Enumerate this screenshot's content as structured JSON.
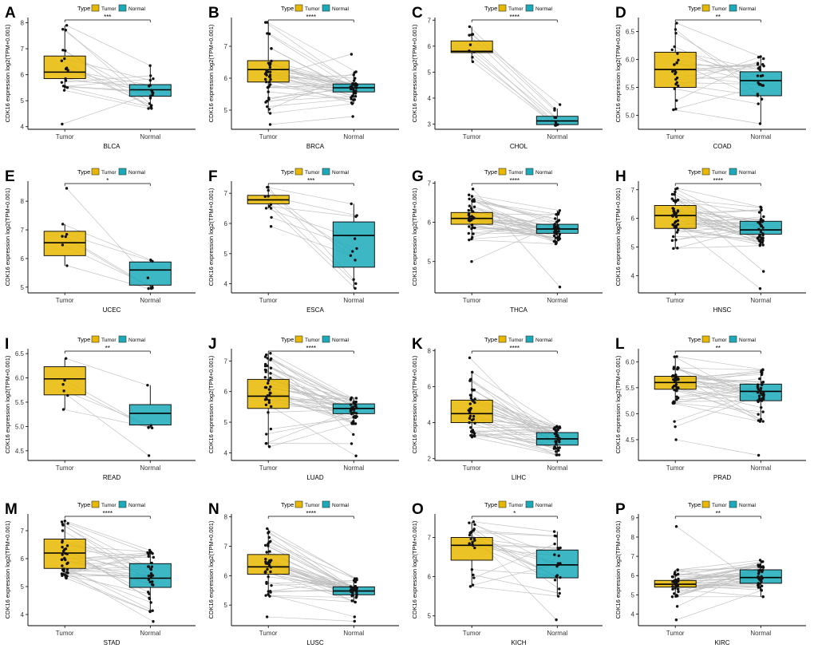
{
  "figure": {
    "ylabel": "CDK16 expression log2(TPM+0.001)",
    "legend_title": "Type",
    "groups": [
      "Tumor",
      "Normal"
    ],
    "colors": {
      "Tumor": "#E7B800",
      "Normal": "#1AAAB8",
      "line": "#bdbdbd",
      "point": "#111111"
    }
  },
  "chart_data": [
    {
      "panel": "A",
      "type": "box",
      "title": "BLCA",
      "xlabel": "BLCA",
      "categories": [
        "Tumor",
        "Normal"
      ],
      "significance": "***",
      "ylim": [
        3.9,
        8.2
      ],
      "yticks": [
        4,
        5,
        6,
        7,
        8
      ],
      "ytick_labels": [
        "4",
        "5",
        "6",
        "7",
        "8"
      ],
      "tumor": {
        "q1": 5.85,
        "median": 6.1,
        "q3": 6.72,
        "whisker_low": 5.4,
        "whisker_high": 7.9,
        "outliers": [
          4.1
        ]
      },
      "normal": {
        "q1": 5.17,
        "median": 5.42,
        "q3": 5.62,
        "whisker_low": 4.7,
        "whisker_high": 6.35,
        "outliers": []
      },
      "n_points": 19
    },
    {
      "panel": "B",
      "type": "box",
      "title": "BRCA",
      "xlabel": "BRCA",
      "categories": [
        "Tumor",
        "Normal"
      ],
      "significance": "****",
      "ylim": [
        4.4,
        7.9
      ],
      "yticks": [
        5,
        6,
        7
      ],
      "ytick_labels": [
        "5",
        "6",
        "7"
      ],
      "tumor": {
        "q1": 5.88,
        "median": 6.27,
        "q3": 6.55,
        "whisker_low": 4.9,
        "whisker_high": 7.75,
        "outliers": [
          4.55
        ]
      },
      "normal": {
        "q1": 5.57,
        "median": 5.7,
        "q3": 5.82,
        "whisker_low": 5.2,
        "whisker_high": 6.2,
        "outliers": [
          6.75,
          4.8
        ]
      },
      "n_points": 40
    },
    {
      "panel": "C",
      "type": "box",
      "title": "CHOL",
      "xlabel": "CHOL",
      "categories": [
        "Tumor",
        "Normal"
      ],
      "significance": "****",
      "ylim": [
        2.8,
        7.1
      ],
      "yticks": [
        3,
        4,
        5,
        6,
        7
      ],
      "ytick_labels": [
        "3",
        "4",
        "5",
        "6",
        "7"
      ],
      "tumor": {
        "q1": 5.75,
        "median": 5.8,
        "q3": 6.2,
        "whisker_low": 5.4,
        "whisker_high": 6.75,
        "outliers": []
      },
      "normal": {
        "q1": 2.98,
        "median": 3.12,
        "q3": 3.3,
        "whisker_low": 2.95,
        "whisker_high": 3.6,
        "outliers": [
          3.75
        ]
      },
      "n_points": 9
    },
    {
      "panel": "D",
      "type": "box",
      "title": "COAD",
      "xlabel": "COAD",
      "categories": [
        "Tumor",
        "Normal"
      ],
      "significance": "**",
      "ylim": [
        4.75,
        6.75
      ],
      "yticks": [
        5.0,
        5.5,
        6.0,
        6.5
      ],
      "ytick_labels": [
        "5.0",
        "5.5",
        "6.0",
        "6.5"
      ],
      "tumor": {
        "q1": 5.5,
        "median": 5.82,
        "q3": 6.13,
        "whisker_low": 5.1,
        "whisker_high": 6.65,
        "outliers": []
      },
      "normal": {
        "q1": 5.35,
        "median": 5.62,
        "q3": 5.78,
        "whisker_low": 4.85,
        "whisker_high": 6.05,
        "outliers": []
      },
      "n_points": 24
    },
    {
      "panel": "E",
      "type": "box",
      "title": "UCEC",
      "xlabel": "UCEC",
      "categories": [
        "Tumor",
        "Normal"
      ],
      "significance": "*",
      "ylim": [
        4.8,
        8.7
      ],
      "yticks": [
        5,
        6,
        7,
        8
      ],
      "ytick_labels": [
        "5",
        "6",
        "7",
        "8"
      ],
      "tumor": {
        "q1": 6.1,
        "median": 6.55,
        "q3": 6.95,
        "whisker_low": 5.75,
        "whisker_high": 7.2,
        "outliers": [
          8.45
        ]
      },
      "normal": {
        "q1": 5.07,
        "median": 5.6,
        "q3": 5.88,
        "whisker_low": 4.95,
        "whisker_high": 5.95,
        "outliers": []
      },
      "n_points": 7
    },
    {
      "panel": "F",
      "type": "box",
      "title": "ESCA",
      "xlabel": "ESCA",
      "categories": [
        "Tumor",
        "Normal"
      ],
      "significance": "***",
      "ylim": [
        3.7,
        7.4
      ],
      "yticks": [
        4,
        5,
        6,
        7
      ],
      "ytick_labels": [
        "4",
        "5",
        "6",
        "7"
      ],
      "tumor": {
        "q1": 6.65,
        "median": 6.78,
        "q3": 6.93,
        "whisker_low": 6.5,
        "whisker_high": 7.2,
        "outliers": [
          6.2,
          5.9
        ]
      },
      "normal": {
        "q1": 4.55,
        "median": 5.6,
        "q3": 6.05,
        "whisker_low": 3.85,
        "whisker_high": 6.65,
        "outliers": []
      },
      "n_points": 11
    },
    {
      "panel": "G",
      "type": "box",
      "title": "THCA",
      "xlabel": "THCA",
      "categories": [
        "Tumor",
        "Normal"
      ],
      "significance": "****",
      "ylim": [
        4.2,
        7.05
      ],
      "yticks": [
        5,
        6,
        7
      ],
      "ytick_labels": [
        "5",
        "6",
        "7"
      ],
      "tumor": {
        "q1": 5.95,
        "median": 6.1,
        "q3": 6.25,
        "whisker_low": 5.55,
        "whisker_high": 6.7,
        "outliers": [
          5.0,
          6.85
        ]
      },
      "normal": {
        "q1": 5.72,
        "median": 5.83,
        "q3": 5.95,
        "whisker_low": 5.45,
        "whisker_high": 6.3,
        "outliers": [
          4.35
        ]
      },
      "n_points": 40
    },
    {
      "panel": "H",
      "type": "box",
      "title": "HNSC",
      "xlabel": "HNSC",
      "categories": [
        "Tumor",
        "Normal"
      ],
      "significance": "****",
      "ylim": [
        3.4,
        7.3
      ],
      "yticks": [
        4,
        5,
        6,
        7
      ],
      "ytick_labels": [
        "4",
        "5",
        "6",
        "7"
      ],
      "tumor": {
        "q1": 5.65,
        "median": 6.1,
        "q3": 6.45,
        "whisker_low": 4.95,
        "whisker_high": 7.05,
        "outliers": []
      },
      "normal": {
        "q1": 5.45,
        "median": 5.6,
        "q3": 5.9,
        "whisker_low": 5.05,
        "whisker_high": 6.4,
        "outliers": [
          4.15,
          3.55
        ]
      },
      "n_points": 40
    },
    {
      "panel": "I",
      "type": "box",
      "title": "READ",
      "xlabel": "READ",
      "categories": [
        "Tumor",
        "Normal"
      ],
      "significance": "**",
      "ylim": [
        4.3,
        6.6
      ],
      "yticks": [
        4.5,
        5.0,
        5.5,
        6.0,
        6.5
      ],
      "ytick_labels": [
        "4.5",
        "5.0",
        "5.5",
        "6.0",
        "6.5"
      ],
      "tumor": {
        "q1": 5.65,
        "median": 5.98,
        "q3": 6.23,
        "whisker_low": 5.35,
        "whisker_high": 6.4,
        "outliers": []
      },
      "normal": {
        "q1": 5.03,
        "median": 5.27,
        "q3": 5.45,
        "whisker_low": 4.97,
        "whisker_high": 5.85,
        "outliers": [
          4.4
        ]
      },
      "n_points": 6
    },
    {
      "panel": "J",
      "type": "box",
      "title": "LUAD",
      "xlabel": "LUAD",
      "categories": [
        "Tumor",
        "Normal"
      ],
      "significance": "****",
      "ylim": [
        3.75,
        7.4
      ],
      "yticks": [
        4,
        5,
        6,
        7
      ],
      "ytick_labels": [
        "4",
        "5",
        "6",
        "7"
      ],
      "tumor": {
        "q1": 5.45,
        "median": 5.85,
        "q3": 6.4,
        "whisker_low": 4.2,
        "whisker_high": 7.25,
        "outliers": []
      },
      "normal": {
        "q1": 5.28,
        "median": 5.45,
        "q3": 5.6,
        "whisker_low": 4.95,
        "whisker_high": 5.8,
        "outliers": [
          4.6,
          4.3,
          3.9
        ]
      },
      "n_points": 40
    },
    {
      "panel": "K",
      "type": "box",
      "title": "LIHC",
      "xlabel": "LIHC",
      "categories": [
        "Tumor",
        "Normal"
      ],
      "significance": "****",
      "ylim": [
        1.9,
        8.1
      ],
      "yticks": [
        2,
        4,
        6,
        8
      ],
      "ytick_labels": [
        "2",
        "4",
        "6",
        "8"
      ],
      "tumor": {
        "q1": 4.0,
        "median": 4.5,
        "q3": 5.25,
        "whisker_low": 3.2,
        "whisker_high": 6.8,
        "outliers": [
          7.6
        ]
      },
      "normal": {
        "q1": 2.75,
        "median": 3.1,
        "q3": 3.45,
        "whisker_low": 2.2,
        "whisker_high": 3.8,
        "outliers": []
      },
      "n_points": 40
    },
    {
      "panel": "L",
      "type": "box",
      "title": "PRAD",
      "xlabel": "PRAD",
      "categories": [
        "Tumor",
        "Normal"
      ],
      "significance": "**",
      "ylim": [
        4.1,
        6.25
      ],
      "yticks": [
        4.5,
        5.0,
        5.5,
        6.0
      ],
      "ytick_labels": [
        "4.5",
        "5.0",
        "5.5",
        "6.0"
      ],
      "tumor": {
        "q1": 5.47,
        "median": 5.6,
        "q3": 5.72,
        "whisker_low": 5.2,
        "whisker_high": 6.1,
        "outliers": [
          4.85,
          4.75,
          4.5
        ]
      },
      "normal": {
        "q1": 5.25,
        "median": 5.43,
        "q3": 5.57,
        "whisker_low": 4.85,
        "whisker_high": 5.85,
        "outliers": [
          4.2
        ]
      },
      "n_points": 40
    },
    {
      "panel": "M",
      "type": "box",
      "title": "STAD",
      "xlabel": "STAD",
      "categories": [
        "Tumor",
        "Normal"
      ],
      "significance": "****",
      "ylim": [
        3.6,
        7.6
      ],
      "yticks": [
        4,
        5,
        6,
        7
      ],
      "ytick_labels": [
        "4",
        "5",
        "6",
        "7"
      ],
      "tumor": {
        "q1": 5.65,
        "median": 6.2,
        "q3": 6.7,
        "whisker_low": 5.3,
        "whisker_high": 7.35,
        "outliers": []
      },
      "normal": {
        "q1": 4.97,
        "median": 5.3,
        "q3": 5.82,
        "whisker_low": 4.1,
        "whisker_high": 6.3,
        "outliers": [
          3.75
        ]
      },
      "n_points": 36
    },
    {
      "panel": "N",
      "type": "box",
      "title": "LUSC",
      "xlabel": "LUSC",
      "categories": [
        "Tumor",
        "Normal"
      ],
      "significance": "****",
      "ylim": [
        4.3,
        8.1
      ],
      "yticks": [
        5,
        6,
        7,
        8
      ],
      "ytick_labels": [
        "5",
        "6",
        "7",
        "8"
      ],
      "tumor": {
        "q1": 6.05,
        "median": 6.3,
        "q3": 6.72,
        "whisker_low": 5.3,
        "whisker_high": 7.6,
        "outliers": [
          4.6
        ]
      },
      "normal": {
        "q1": 5.35,
        "median": 5.48,
        "q3": 5.62,
        "whisker_low": 5.1,
        "whisker_high": 5.9,
        "outliers": [
          4.6,
          4.45
        ]
      },
      "n_points": 40
    },
    {
      "panel": "O",
      "type": "box",
      "title": "KICH",
      "xlabel": "KICH",
      "categories": [
        "Tumor",
        "Normal"
      ],
      "significance": "*",
      "ylim": [
        4.75,
        7.6
      ],
      "yticks": [
        5,
        6,
        7
      ],
      "ytick_labels": [
        "5",
        "6",
        "7"
      ],
      "tumor": {
        "q1": 6.42,
        "median": 6.8,
        "q3": 7.0,
        "whisker_low": 5.75,
        "whisker_high": 7.4,
        "outliers": []
      },
      "normal": {
        "q1": 5.97,
        "median": 6.3,
        "q3": 6.68,
        "whisker_low": 5.5,
        "whisker_high": 7.15,
        "outliers": [
          4.9
        ]
      },
      "n_points": 22
    },
    {
      "panel": "P",
      "type": "box",
      "title": "KIRC",
      "xlabel": "KIRC",
      "categories": [
        "Tumor",
        "Normal"
      ],
      "significance": "**",
      "ylim": [
        3.4,
        9.2
      ],
      "yticks": [
        4,
        5,
        6,
        7,
        8,
        9
      ],
      "ytick_labels": [
        "4",
        "5",
        "6",
        "7",
        "8",
        "9"
      ],
      "tumor": {
        "q1": 5.4,
        "median": 5.55,
        "q3": 5.75,
        "whisker_low": 4.9,
        "whisker_high": 6.3,
        "outliers": [
          8.55,
          4.4,
          3.7
        ]
      },
      "normal": {
        "q1": 5.6,
        "median": 5.9,
        "q3": 6.3,
        "whisker_low": 4.9,
        "whisker_high": 6.8,
        "outliers": []
      },
      "n_points": 40
    }
  ]
}
